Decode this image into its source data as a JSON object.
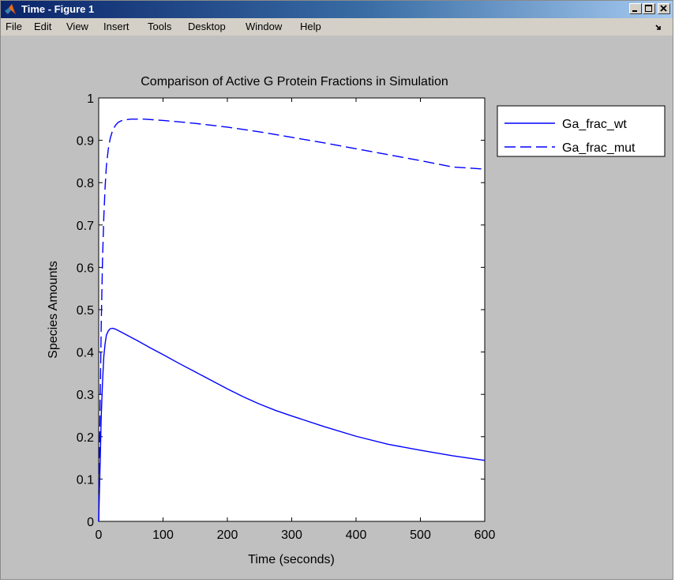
{
  "window": {
    "title": "Time - Figure 1"
  },
  "menu": {
    "items": [
      "File",
      "Edit",
      "View",
      "Insert",
      "Tools",
      "Desktop",
      "Window",
      "Help"
    ]
  },
  "icons": {
    "app": "matlab-logo-icon",
    "minimize": "minimize-icon",
    "maximize": "maximize-icon",
    "close": "close-icon",
    "dock": "dock-arrow-icon"
  },
  "colors": {
    "series": "#0000ff",
    "figure_bg": "#c0c0c0",
    "axes_bg": "#ffffff"
  },
  "chart_data": {
    "type": "line",
    "title": "Comparison of Active G Protein Fractions in Simulation",
    "xlabel": "Time (seconds)",
    "ylabel": "Species Amounts",
    "xlim": [
      0,
      600
    ],
    "ylim": [
      0,
      1
    ],
    "xticks": [
      0,
      100,
      200,
      300,
      400,
      500,
      600
    ],
    "yticks": [
      0,
      0.1,
      0.2,
      0.3,
      0.4,
      0.5,
      0.6,
      0.7,
      0.8,
      0.9,
      1
    ],
    "ytick_labels": [
      "0",
      "0.1",
      "0.2",
      "0.3",
      "0.4",
      "0.5",
      "0.6",
      "0.7",
      "0.8",
      "0.9",
      "1"
    ],
    "grid": false,
    "legend_position": "outside-right-top",
    "series": [
      {
        "name": "Ga_frac_wt",
        "style": "solid",
        "color": "#0000ff",
        "x": [
          0,
          2,
          4,
          6,
          8,
          10,
          12,
          15,
          18,
          22,
          26,
          30,
          40,
          50,
          60,
          80,
          100,
          125,
          150,
          175,
          200,
          225,
          250,
          275,
          300,
          350,
          400,
          450,
          500,
          550,
          600
        ],
        "y": [
          0,
          0.12,
          0.25,
          0.33,
          0.39,
          0.42,
          0.44,
          0.45,
          0.455,
          0.456,
          0.454,
          0.451,
          0.443,
          0.435,
          0.427,
          0.41,
          0.394,
          0.373,
          0.353,
          0.333,
          0.313,
          0.294,
          0.277,
          0.262,
          0.249,
          0.224,
          0.201,
          0.182,
          0.168,
          0.155,
          0.144
        ]
      },
      {
        "name": "Ga_frac_mut",
        "style": "dashed",
        "color": "#0000ff",
        "x": [
          0,
          2,
          4,
          6,
          8,
          10,
          12,
          15,
          18,
          22,
          26,
          30,
          35,
          40,
          50,
          60,
          70,
          80,
          100,
          150,
          200,
          250,
          300,
          350,
          400,
          450,
          500,
          550,
          600
        ],
        "y": [
          0,
          0.25,
          0.47,
          0.62,
          0.72,
          0.79,
          0.84,
          0.88,
          0.905,
          0.925,
          0.935,
          0.942,
          0.946,
          0.948,
          0.95,
          0.95,
          0.95,
          0.949,
          0.947,
          0.94,
          0.931,
          0.92,
          0.907,
          0.894,
          0.88,
          0.866,
          0.852,
          0.837,
          0.832
        ]
      }
    ]
  }
}
